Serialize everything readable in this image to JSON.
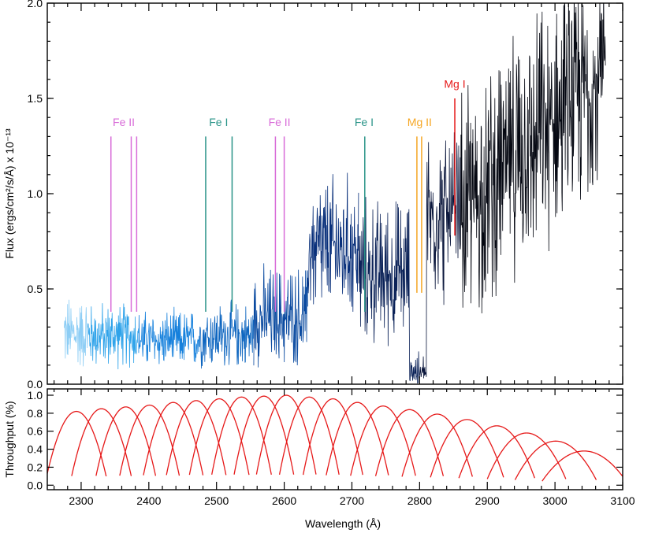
{
  "chart_data": [
    {
      "type": "line",
      "panel": "spectrum",
      "ylabel": "Flux (ergs/cm²/s/Å) x 10⁻¹³",
      "xlim": [
        2250,
        3100
      ],
      "ylim": [
        0,
        2.0
      ],
      "yticks": [
        0.0,
        0.5,
        1.0,
        1.5,
        2.0
      ],
      "ytick_labels": [
        "0.0",
        "0.5",
        "1.0",
        "1.5",
        "2.0"
      ],
      "grid": false,
      "segments": [
        {
          "x0": 2275,
          "x1": 2310,
          "color": "#8ccdf5",
          "base": 0.25,
          "amp": 0.28
        },
        {
          "x0": 2310,
          "x1": 2385,
          "color": "#2fa3ea",
          "base": 0.24,
          "amp": 0.25
        },
        {
          "x0": 2385,
          "x1": 2475,
          "color": "#1580dc",
          "base": 0.22,
          "amp": 0.22
        },
        {
          "x0": 2475,
          "x1": 2555,
          "color": "#0e66c0",
          "base": 0.24,
          "amp": 0.25
        },
        {
          "x0": 2555,
          "x1": 2635,
          "color": "#0a4aa0",
          "base": 0.33,
          "amp": 0.38
        },
        {
          "x0": 2635,
          "x1": 2710,
          "color": "#082f7a",
          "base": 0.68,
          "amp": 0.55
        },
        {
          "x0": 2710,
          "x1": 2800,
          "color": "#0b2258",
          "base": 0.55,
          "amp": 0.55
        },
        {
          "x0": 2800,
          "x1": 2860,
          "color": "#0b173c",
          "base": 0.85,
          "amp": 0.65
        },
        {
          "x0": 2860,
          "x1": 3075,
          "color": "#050812",
          "base": 0.95,
          "amp": 0.95
        }
      ],
      "line_markers": [
        {
          "label": "Fe II",
          "color": "#d86bd8",
          "positions": [
            2344,
            2374,
            2382
          ],
          "y_bottom": 0.38,
          "y_top": 1.3,
          "label_x": 2363,
          "label_y": 1.33
        },
        {
          "label": "Fe I",
          "color": "#2a9488",
          "positions": [
            2484,
            2523
          ],
          "y_bottom": 0.38,
          "y_top": 1.3,
          "label_x": 2503,
          "label_y": 1.33
        },
        {
          "label": "Fe II",
          "color": "#d86bd8",
          "positions": [
            2587,
            2600
          ],
          "y_bottom": 0.38,
          "y_top": 1.3,
          "label_x": 2593,
          "label_y": 1.33
        },
        {
          "label": "Fe I",
          "color": "#2a9488",
          "positions": [
            2719
          ],
          "y_bottom": 0.38,
          "y_top": 1.3,
          "label_x": 2718,
          "label_y": 1.33
        },
        {
          "label": "Mg II",
          "color": "#f5a623",
          "positions": [
            2796,
            2803
          ],
          "y_bottom": 0.48,
          "y_top": 1.3,
          "label_x": 2800,
          "label_y": 1.33
        },
        {
          "label": "Mg I",
          "color": "#e61919",
          "positions": [
            2852
          ],
          "y_bottom": 0.78,
          "y_top": 1.5,
          "label_x": 2852,
          "label_y": 1.53
        }
      ]
    },
    {
      "type": "line",
      "panel": "throughput",
      "xlabel": "Wavelength (Å)",
      "ylabel": "Throughput (%)",
      "xlim": [
        2250,
        3100
      ],
      "ylim": [
        -0.05,
        1.07
      ],
      "xticks": [
        2300,
        2400,
        2500,
        2600,
        2700,
        2800,
        2900,
        3000,
        3100
      ],
      "xtick_labels": [
        "2300",
        "2400",
        "2500",
        "2600",
        "2700",
        "2800",
        "2900",
        "3000",
        "3100"
      ],
      "yticks": [
        0.0,
        0.2,
        0.4,
        0.6,
        0.8,
        1.0
      ],
      "ytick_labels": [
        "0.0",
        "0.2",
        "0.4",
        "0.6",
        "0.8",
        "1.0"
      ],
      "grid": false,
      "color": "#e61919",
      "series": [
        {
          "center": 2293,
          "peak": 0.82,
          "half_width": 22
        },
        {
          "center": 2330,
          "peak": 0.85,
          "half_width": 22
        },
        {
          "center": 2366,
          "peak": 0.87,
          "half_width": 22
        },
        {
          "center": 2401,
          "peak": 0.89,
          "half_width": 22
        },
        {
          "center": 2436,
          "peak": 0.92,
          "half_width": 22
        },
        {
          "center": 2470,
          "peak": 0.94,
          "half_width": 22
        },
        {
          "center": 2504,
          "peak": 0.96,
          "half_width": 22
        },
        {
          "center": 2537,
          "peak": 0.98,
          "half_width": 22
        },
        {
          "center": 2570,
          "peak": 0.99,
          "half_width": 22
        },
        {
          "center": 2603,
          "peak": 1.0,
          "half_width": 22
        },
        {
          "center": 2637,
          "peak": 0.98,
          "half_width": 22
        },
        {
          "center": 2672,
          "peak": 0.96,
          "half_width": 22
        },
        {
          "center": 2708,
          "peak": 0.92,
          "half_width": 23
        },
        {
          "center": 2746,
          "peak": 0.88,
          "half_width": 24
        },
        {
          "center": 2785,
          "peak": 0.84,
          "half_width": 25
        },
        {
          "center": 2826,
          "peak": 0.79,
          "half_width": 26
        },
        {
          "center": 2870,
          "peak": 0.73,
          "half_width": 27
        },
        {
          "center": 2914,
          "peak": 0.66,
          "half_width": 28
        },
        {
          "center": 2958,
          "peak": 0.58,
          "half_width": 29
        },
        {
          "center": 3001,
          "peak": 0.49,
          "half_width": 30
        },
        {
          "center": 3043,
          "peak": 0.38,
          "half_width": 31
        }
      ]
    }
  ]
}
